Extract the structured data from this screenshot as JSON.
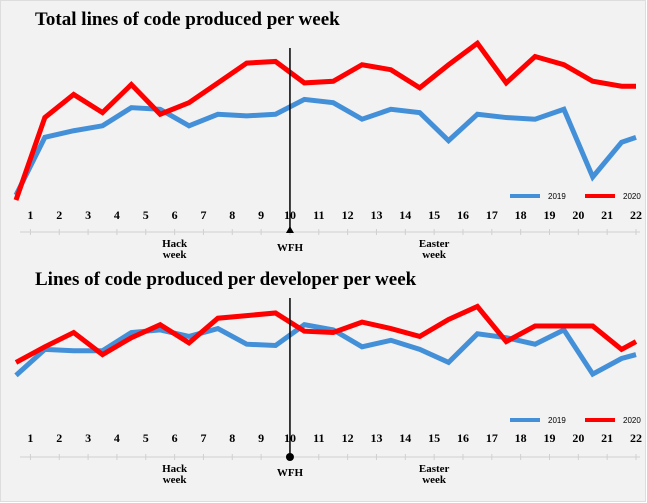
{
  "chart_data": [
    {
      "type": "line",
      "title": "Total lines of code produced per week",
      "xticks": [
        1,
        2,
        3,
        4,
        5,
        6,
        7,
        8,
        9,
        10,
        11,
        12,
        13,
        14,
        15,
        16,
        17,
        18,
        19,
        20,
        21,
        22
      ],
      "xlim": [
        0.5,
        22
      ],
      "ylim": [
        0,
        100
      ],
      "x": [
        0.5,
        1.5,
        2.5,
        3.5,
        4.5,
        5.5,
        6.5,
        7.5,
        8.5,
        9.5,
        10.5,
        11.5,
        12.5,
        13.5,
        14.5,
        15.5,
        16.5,
        17.5,
        18.5,
        19.5,
        20.5,
        21.5,
        22
      ],
      "series": [
        {
          "name": "2019",
          "color": "#4390d8",
          "values": [
            6,
            41,
            45,
            48,
            59,
            58,
            48,
            55,
            54,
            55,
            64,
            62,
            52,
            58,
            56,
            39,
            55,
            53,
            52,
            58,
            17,
            38,
            41
          ]
        },
        {
          "name": "2020",
          "color": "#ff0000",
          "values": [
            3,
            53,
            67,
            56,
            73,
            55,
            62,
            74,
            86,
            87,
            74,
            75,
            85,
            82,
            71,
            85,
            98,
            74,
            90,
            85,
            75,
            72,
            72
          ]
        }
      ],
      "annotations": [
        {
          "lines": [
            "Hack",
            "week"
          ],
          "x": 6
        },
        {
          "lines": [
            "WFH"
          ],
          "x": 10,
          "vline": true
        },
        {
          "lines": [
            "Easter",
            "week"
          ],
          "x": 15
        }
      ],
      "legend": "lower right"
    },
    {
      "type": "line",
      "title": "Lines of code produced per developer per week",
      "xticks": [
        1,
        2,
        3,
        4,
        5,
        6,
        7,
        8,
        9,
        10,
        11,
        12,
        13,
        14,
        15,
        16,
        17,
        18,
        19,
        20,
        21,
        22
      ],
      "xlim": [
        0.5,
        22
      ],
      "ylim": [
        0,
        100
      ],
      "x": [
        0.5,
        1.5,
        2.5,
        3.5,
        4.5,
        5.5,
        6.5,
        7.5,
        8.5,
        9.5,
        10.5,
        11.5,
        12.5,
        13.5,
        14.5,
        15.5,
        16.5,
        17.5,
        18.5,
        19.5,
        20.5,
        21.5,
        22
      ],
      "series": [
        {
          "name": "2019",
          "color": "#4390d8",
          "values": [
            42,
            62,
            61,
            61,
            75,
            77,
            72,
            78,
            66,
            65,
            81,
            77,
            64,
            69,
            62,
            52,
            74,
            71,
            66,
            77,
            43,
            55,
            58
          ]
        },
        {
          "name": "2020",
          "color": "#ff0000",
          "values": [
            52,
            64,
            75,
            58,
            71,
            81,
            67,
            86,
            88,
            90,
            76,
            75,
            83,
            78,
            72,
            85,
            95,
            68,
            80,
            80,
            80,
            62,
            68
          ]
        }
      ],
      "annotations": [
        {
          "lines": [
            "Hack",
            "week"
          ],
          "x": 6
        },
        {
          "lines": [
            "WFH"
          ],
          "x": 10,
          "vline": true
        },
        {
          "lines": [
            "Easter",
            "week"
          ],
          "x": 15
        }
      ],
      "legend": "lower right"
    }
  ]
}
